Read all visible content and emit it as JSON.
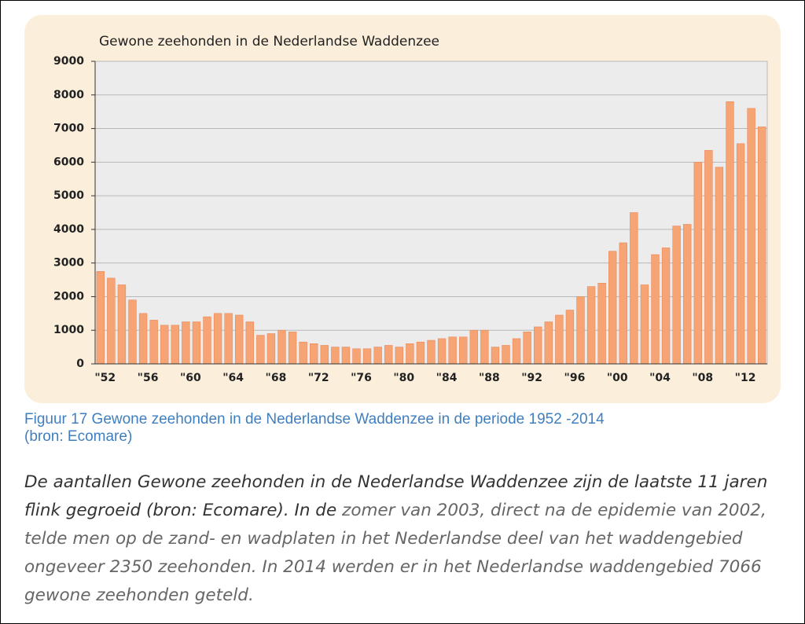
{
  "chart_data": {
    "type": "bar",
    "title": "Gewone zeehonden in de Nederlandse Waddenzee",
    "categories": [
      "\"52",
      null,
      null,
      null,
      "\"56",
      null,
      null,
      null,
      "\"60",
      null,
      null,
      null,
      "\"64",
      null,
      null,
      null,
      "\"68",
      null,
      null,
      null,
      "\"72",
      null,
      null,
      null,
      "\"76",
      null,
      null,
      null,
      "\"80",
      null,
      null,
      null,
      "\"84",
      null,
      null,
      null,
      "\"88",
      null,
      null,
      null,
      "\"92",
      null,
      null,
      null,
      "\"96",
      null,
      null,
      null,
      "\"00",
      null,
      null,
      null,
      "\"04",
      null,
      null,
      null,
      "\"08",
      null,
      null,
      null,
      "\"12",
      null,
      null
    ],
    "values": [
      2750,
      2550,
      2350,
      1900,
      1500,
      1300,
      1150,
      1150,
      1250,
      1250,
      1400,
      1500,
      1500,
      1450,
      1250,
      850,
      900,
      1000,
      950,
      650,
      600,
      550,
      500,
      500,
      450,
      450,
      500,
      550,
      500,
      600,
      650,
      700,
      750,
      800,
      800,
      1000,
      1000,
      500,
      550,
      750,
      950,
      1100,
      1250,
      1450,
      1600,
      2000,
      2300,
      2400,
      3350,
      3600,
      4500,
      2350,
      3250,
      3450,
      4100,
      4150,
      6000,
      6350,
      5850,
      7800,
      6550,
      7600,
      7050
    ],
    "color": "#f7a474",
    "ylim": [
      0,
      9000
    ],
    "yticks": [
      0,
      1000,
      2000,
      3000,
      4000,
      5000,
      6000,
      7000,
      8000,
      9000
    ],
    "grid": true
  },
  "caption": {
    "lines": [
      "Figuur 17  Gewone zeehonden in de Nederlandse Waddenzee in de periode 1952 -2014",
      "(bron: Ecomare)"
    ]
  },
  "paragraph": {
    "parts": [
      "De aantallen Gewone zeehonden in de Nederlandse Waddenzee zijn de laatste 11 jaren flink gegroeid (bron: Ecomare). In de ",
      "zomer van 2003, direct na de epidemie van 2002, telde men op de zand- en wadplaten in het Nederlandse deel van het waddengebied ongeveer 2350 zeehonden.  In 2014 werden er in het Nederlandse waddengebied 7066 gewone zeehonden geteld."
    ]
  }
}
